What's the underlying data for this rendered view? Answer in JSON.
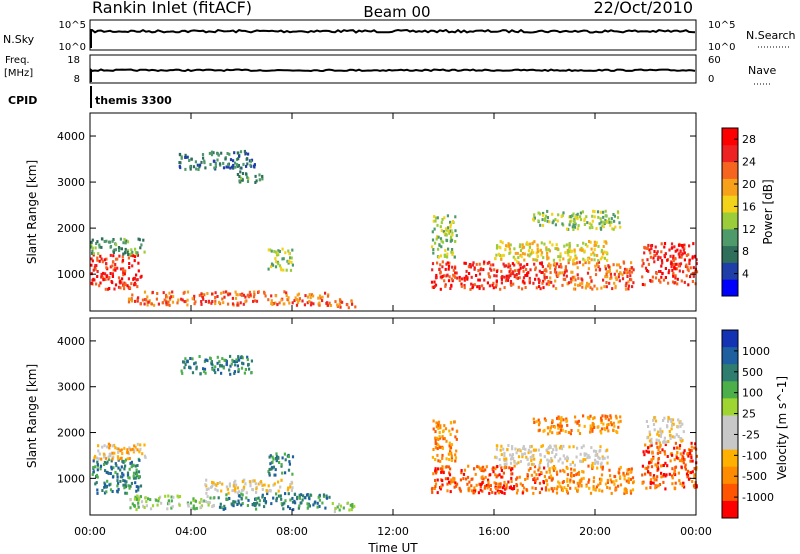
{
  "header": {
    "station": "Rankin Inlet (fitACF)",
    "beam": "Beam 00",
    "date": "22/Oct/2010"
  },
  "status_panels": {
    "nsky_label": "N.Sky",
    "nsky_ticks": [
      "10^5",
      "10^0"
    ],
    "nsearch_label": "N.Search",
    "nsearch_ticks": [
      "10^5",
      "10^0"
    ],
    "freq_label": "Freq.",
    "freq_unit": "[MHz]",
    "freq_ticks": [
      "18",
      "8"
    ],
    "nave_label": "Nave",
    "nave_ticks": [
      "60",
      "0"
    ],
    "cpid_label": "CPID",
    "cpid_value": "themis 3300"
  },
  "colors": {
    "power_scale": [
      "#0000ff",
      "#1f3ea8",
      "#2f6e5a",
      "#4e9a6a",
      "#9bcd3a",
      "#f2d21a",
      "#f7a019",
      "#f5651f",
      "#ee2222",
      "#ff0000"
    ],
    "velocity_scale": [
      "#ff0000",
      "#ff5500",
      "#ff8c00",
      "#ffb000",
      "#c8c8c8",
      "#c8c8c8",
      "#9ed531",
      "#4daf4a",
      "#2e7d6e",
      "#1e5fa0",
      "#1433b4"
    ]
  },
  "chart_data": [
    {
      "type": "heatmap",
      "name": "power",
      "ylabel": "Slant Range [km]",
      "yticks": [
        "1000",
        "2000",
        "3000",
        "4000"
      ],
      "ylim": [
        200,
        4500
      ],
      "x_unit": "hours UT",
      "xlim": [
        0,
        24
      ],
      "colorbar_label": "Power [dB]",
      "colorbar_ticks": [
        "4",
        "8",
        "12",
        "16",
        "20",
        "24",
        "28"
      ],
      "colorbar_range": [
        0,
        30
      ],
      "patches": [
        {
          "t": [
            0.0,
            2.0
          ],
          "r": [
            700,
            1450
          ],
          "level": 26
        },
        {
          "t": [
            0.0,
            2.2
          ],
          "r": [
            1450,
            1800
          ],
          "level": 10
        },
        {
          "t": [
            1.5,
            5.0
          ],
          "r": [
            350,
            650
          ],
          "level": 22
        },
        {
          "t": [
            5.0,
            9.5
          ],
          "r": [
            350,
            650
          ],
          "level": 24
        },
        {
          "t": [
            9.5,
            10.5
          ],
          "r": [
            300,
            500
          ],
          "level": 22
        },
        {
          "t": [
            3.5,
            6.5
          ],
          "r": [
            3300,
            3700
          ],
          "level": 8
        },
        {
          "t": [
            5.8,
            6.8
          ],
          "r": [
            3000,
            3300
          ],
          "level": 9
        },
        {
          "t": [
            7.0,
            8.0
          ],
          "r": [
            1100,
            1600
          ],
          "level": 12
        },
        {
          "t": [
            13.5,
            18.0
          ],
          "r": [
            700,
            1300
          ],
          "level": 26
        },
        {
          "t": [
            18.0,
            21.5
          ],
          "r": [
            700,
            1300
          ],
          "level": 24
        },
        {
          "t": [
            16.0,
            20.5
          ],
          "r": [
            1300,
            1750
          ],
          "level": 16
        },
        {
          "t": [
            21.8,
            24.0
          ],
          "r": [
            800,
            1700
          ],
          "level": 26
        },
        {
          "t": [
            13.5,
            14.5
          ],
          "r": [
            1400,
            2300
          ],
          "level": 12
        },
        {
          "t": [
            17.5,
            21.0
          ],
          "r": [
            2000,
            2400
          ],
          "level": 14
        }
      ]
    },
    {
      "type": "heatmap",
      "name": "velocity",
      "ylabel": "Slant Range [km]",
      "yticks": [
        "1000",
        "2000",
        "3000",
        "4000"
      ],
      "ylim": [
        200,
        4500
      ],
      "x_unit": "hours UT",
      "xlim": [
        0,
        24
      ],
      "xlabel": "Time UT",
      "xticks": [
        "00:00",
        "04:00",
        "08:00",
        "12:00",
        "16:00",
        "20:00",
        "00:00"
      ],
      "colorbar_label": "Velocity [m s^-1]",
      "colorbar_ticks": [
        "1000",
        "500",
        "100",
        "25",
        "-25",
        "-100",
        "-500",
        "-1000"
      ],
      "patches": [
        {
          "t": [
            0.0,
            2.0
          ],
          "r": [
            700,
            1450
          ],
          "level": 8
        },
        {
          "t": [
            0.0,
            2.2
          ],
          "r": [
            1450,
            1800
          ],
          "level": 3
        },
        {
          "t": [
            1.5,
            5.0
          ],
          "r": [
            350,
            650
          ],
          "level": 6
        },
        {
          "t": [
            5.0,
            9.5
          ],
          "r": [
            350,
            700
          ],
          "level": 8
        },
        {
          "t": [
            4.5,
            8.0
          ],
          "r": [
            700,
            1000
          ],
          "level": 4
        },
        {
          "t": [
            9.5,
            10.5
          ],
          "r": [
            300,
            500
          ],
          "level": 6
        },
        {
          "t": [
            3.5,
            6.5
          ],
          "r": [
            3300,
            3700
          ],
          "level": 8
        },
        {
          "t": [
            7.0,
            8.0
          ],
          "r": [
            1100,
            1600
          ],
          "level": 8
        },
        {
          "t": [
            13.5,
            18.0
          ],
          "r": [
            700,
            1300
          ],
          "level": 1
        },
        {
          "t": [
            18.0,
            21.5
          ],
          "r": [
            700,
            1300
          ],
          "level": 2
        },
        {
          "t": [
            16.0,
            20.5
          ],
          "r": [
            1300,
            1750
          ],
          "level": 4
        },
        {
          "t": [
            21.8,
            24.0
          ],
          "r": [
            800,
            1800
          ],
          "level": 1
        },
        {
          "t": [
            13.5,
            14.5
          ],
          "r": [
            1400,
            2300
          ],
          "level": 2
        },
        {
          "t": [
            17.5,
            21.0
          ],
          "r": [
            2000,
            2400
          ],
          "level": 2
        },
        {
          "t": [
            22.0,
            23.5
          ],
          "r": [
            1800,
            2400
          ],
          "level": 4
        }
      ]
    }
  ]
}
